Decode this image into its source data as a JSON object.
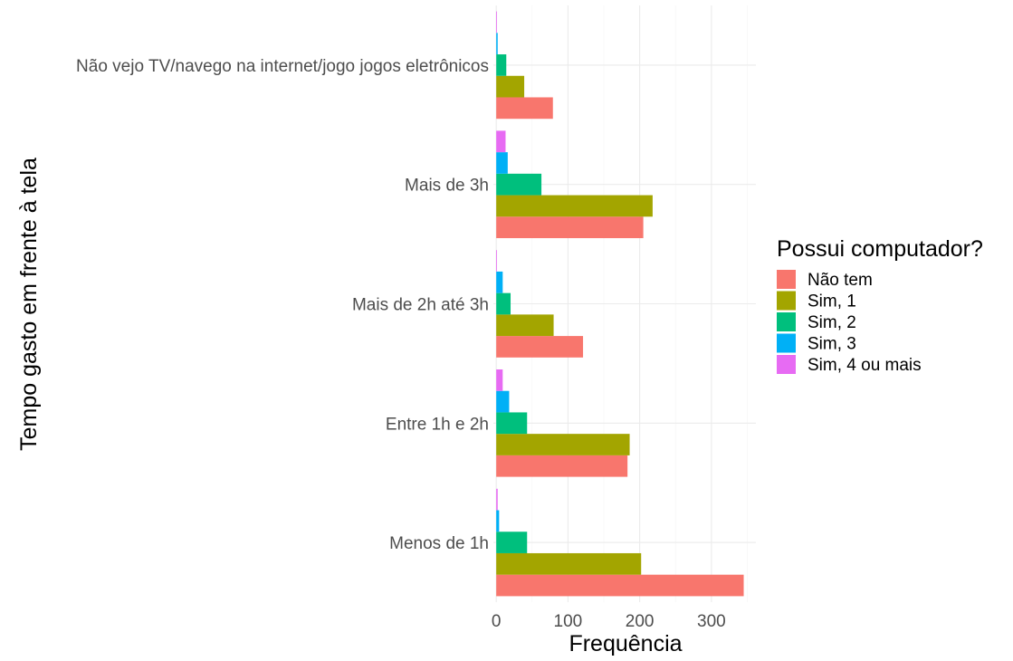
{
  "chart_data": {
    "type": "bar",
    "orientation": "horizontal",
    "position": "dodge",
    "categories": [
      "Menos de 1h",
      "Entre 1h e 2h",
      "Mais de 2h até 3h",
      "Mais de 3h",
      "Não vejo TV/navego na internet/jogo jogos eletrônicos"
    ],
    "series": [
      {
        "name": "Não tem",
        "color": "#F8766D",
        "values": [
          345,
          183,
          121,
          205,
          79
        ]
      },
      {
        "name": "Sim, 1",
        "color": "#A3A500",
        "values": [
          202,
          186,
          80,
          218,
          39
        ]
      },
      {
        "name": "Sim, 2",
        "color": "#00BF7D",
        "values": [
          43,
          43,
          20,
          63,
          14
        ]
      },
      {
        "name": "Sim, 3",
        "color": "#00B0F6",
        "values": [
          4,
          18,
          9,
          16,
          2
        ]
      },
      {
        "name": "Sim, 4 ou mais",
        "color": "#E76BF3",
        "values": [
          2,
          9,
          1,
          13,
          1
        ]
      }
    ],
    "xlabel": "Frequência",
    "ylabel": "Tempo gasto em frente à tela",
    "xlim": [
      -4,
      362
    ],
    "xticks": [
      0,
      100,
      200,
      300
    ],
    "legend": {
      "title": "Possui computador?",
      "placement": "right"
    },
    "grid": true
  }
}
